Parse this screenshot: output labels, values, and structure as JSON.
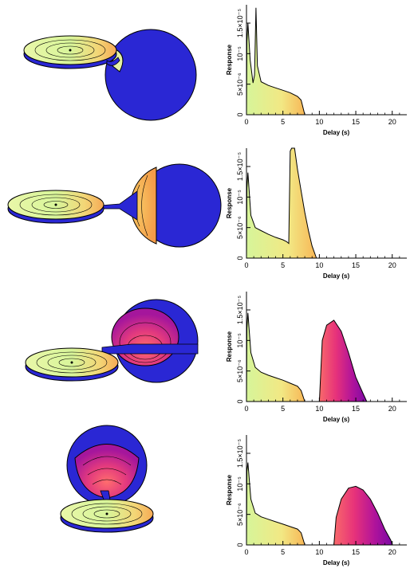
{
  "colors": {
    "disk_blue": "#2a27d4",
    "gradient_early": [
      "#d6f59a",
      "#f2e884",
      "#f7b656"
    ],
    "gradient_late": [
      "#f86a6a",
      "#e7327a",
      "#b0139b",
      "#7b0aa6"
    ],
    "line": "#000000"
  },
  "chart_data": [
    {
      "type": "area",
      "title": "",
      "xlabel": "Delay (s)",
      "ylabel": "Response",
      "xlim": [
        0,
        22
      ],
      "ylim": [
        0,
        1.8e-05
      ],
      "xticks": [
        "0",
        "5",
        "10",
        "15",
        "20"
      ],
      "yticks": [
        "0",
        "5×10⁻⁶",
        "10⁻⁵",
        "1.5×10⁻⁵"
      ],
      "grid": false,
      "series": [
        {
          "fill": "early",
          "points": [
            [
              0,
              0
            ],
            [
              0.05,
              1.2e-05
            ],
            [
              0.2,
              1.5e-05
            ],
            [
              0.5,
              9e-06
            ],
            [
              0.9,
              5.2e-06
            ],
            [
              1.1,
              6.5e-06
            ],
            [
              1.3,
              1.75e-05
            ],
            [
              1.5,
              8e-06
            ],
            [
              2,
              5.4e-06
            ],
            [
              3,
              4.8e-06
            ],
            [
              4,
              4.4e-06
            ],
            [
              5,
              4e-06
            ],
            [
              6,
              3.6e-06
            ],
            [
              7,
              3e-06
            ],
            [
              7.5,
              2.4e-06
            ],
            [
              8,
              0
            ]
          ]
        }
      ]
    },
    {
      "type": "area",
      "title": "",
      "xlabel": "Delay (s)",
      "ylabel": "Response",
      "xlim": [
        0,
        22
      ],
      "ylim": [
        0,
        1.8e-05
      ],
      "xticks": [
        "0",
        "5",
        "10",
        "15",
        "20"
      ],
      "yticks": [
        "0",
        "5×10⁻⁶",
        "10⁻⁵",
        "1.5×10⁻⁵"
      ],
      "grid": false,
      "series": [
        {
          "fill": "early",
          "points": [
            [
              0,
              0
            ],
            [
              0.05,
              1.15e-05
            ],
            [
              0.2,
              1.4e-05
            ],
            [
              0.6,
              7e-06
            ],
            [
              1.2,
              5e-06
            ],
            [
              2,
              4.5e-06
            ],
            [
              3,
              3.9e-06
            ],
            [
              4,
              3.4e-06
            ],
            [
              5,
              3e-06
            ],
            [
              5.5,
              2.7e-06
            ],
            [
              5.8,
              2.4e-06
            ],
            [
              6.0,
              1.75e-05
            ],
            [
              6.2,
              1.8e-05
            ],
            [
              6.6,
              1.8e-05
            ],
            [
              7,
              1.45e-05
            ],
            [
              7.5,
              1.1e-05
            ],
            [
              8,
              7.5e-06
            ],
            [
              8.5,
              4.5e-06
            ],
            [
              9,
              2e-06
            ],
            [
              9.6,
              0
            ]
          ]
        }
      ]
    },
    {
      "type": "area",
      "title": "",
      "xlabel": "Delay (s)",
      "ylabel": "Response",
      "xlim": [
        0,
        22
      ],
      "ylim": [
        0,
        1.8e-05
      ],
      "xticks": [
        "0",
        "5",
        "10",
        "15",
        "20"
      ],
      "yticks": [
        "0",
        "5×10⁻⁶",
        "10⁻⁵",
        "1.5×10⁻⁵"
      ],
      "grid": false,
      "series": [
        {
          "fill": "early",
          "points": [
            [
              0,
              0
            ],
            [
              0.05,
              1.2e-05
            ],
            [
              0.2,
              1.45e-05
            ],
            [
              0.6,
              8e-06
            ],
            [
              1.2,
              5.6e-06
            ],
            [
              2,
              4.8e-06
            ],
            [
              3,
              4.3e-06
            ],
            [
              4,
              3.9e-06
            ],
            [
              5,
              3.5e-06
            ],
            [
              6,
              3e-06
            ],
            [
              7,
              2.5e-06
            ],
            [
              7.5,
              1.8e-06
            ],
            [
              8,
              0
            ]
          ]
        },
        {
          "fill": "late",
          "points": [
            [
              10.0,
              0
            ],
            [
              10.4,
              1e-05
            ],
            [
              11,
              1.25e-05
            ],
            [
              12,
              1.33e-05
            ],
            [
              13,
              1.15e-05
            ],
            [
              14,
              8e-06
            ],
            [
              15,
              4e-06
            ],
            [
              16,
              1.3e-06
            ],
            [
              16.5,
              0
            ]
          ]
        }
      ]
    },
    {
      "type": "area",
      "title": "",
      "xlabel": "Delay (s)",
      "ylabel": "Response",
      "xlim": [
        0,
        22
      ],
      "ylim": [
        0,
        1.8e-05
      ],
      "xticks": [
        "0",
        "5",
        "10",
        "15",
        "20"
      ],
      "yticks": [
        "0",
        "5×10⁻⁶",
        "10⁻⁵",
        "1.5×10⁻⁵"
      ],
      "grid": false,
      "series": [
        {
          "fill": "early",
          "points": [
            [
              0,
              0
            ],
            [
              0.05,
              1.2e-05
            ],
            [
              0.2,
              1.35e-05
            ],
            [
              0.6,
              7.5e-06
            ],
            [
              1.2,
              5.2e-06
            ],
            [
              2,
              4.6e-06
            ],
            [
              3,
              4.2e-06
            ],
            [
              4,
              3.8e-06
            ],
            [
              5,
              3.4e-06
            ],
            [
              6,
              3e-06
            ],
            [
              7,
              2.6e-06
            ],
            [
              7.5,
              2e-06
            ],
            [
              8,
              0
            ]
          ]
        },
        {
          "fill": "late",
          "points": [
            [
              12.0,
              0
            ],
            [
              12.3,
              4.5e-06
            ],
            [
              13,
              7.5e-06
            ],
            [
              14,
              9.3e-06
            ],
            [
              15,
              9.6e-06
            ],
            [
              16,
              9e-06
            ],
            [
              17,
              7.5e-06
            ],
            [
              18,
              5.2e-06
            ],
            [
              19,
              2.5e-06
            ],
            [
              19.8,
              8e-07
            ],
            [
              20,
              0
            ]
          ]
        }
      ]
    }
  ]
}
